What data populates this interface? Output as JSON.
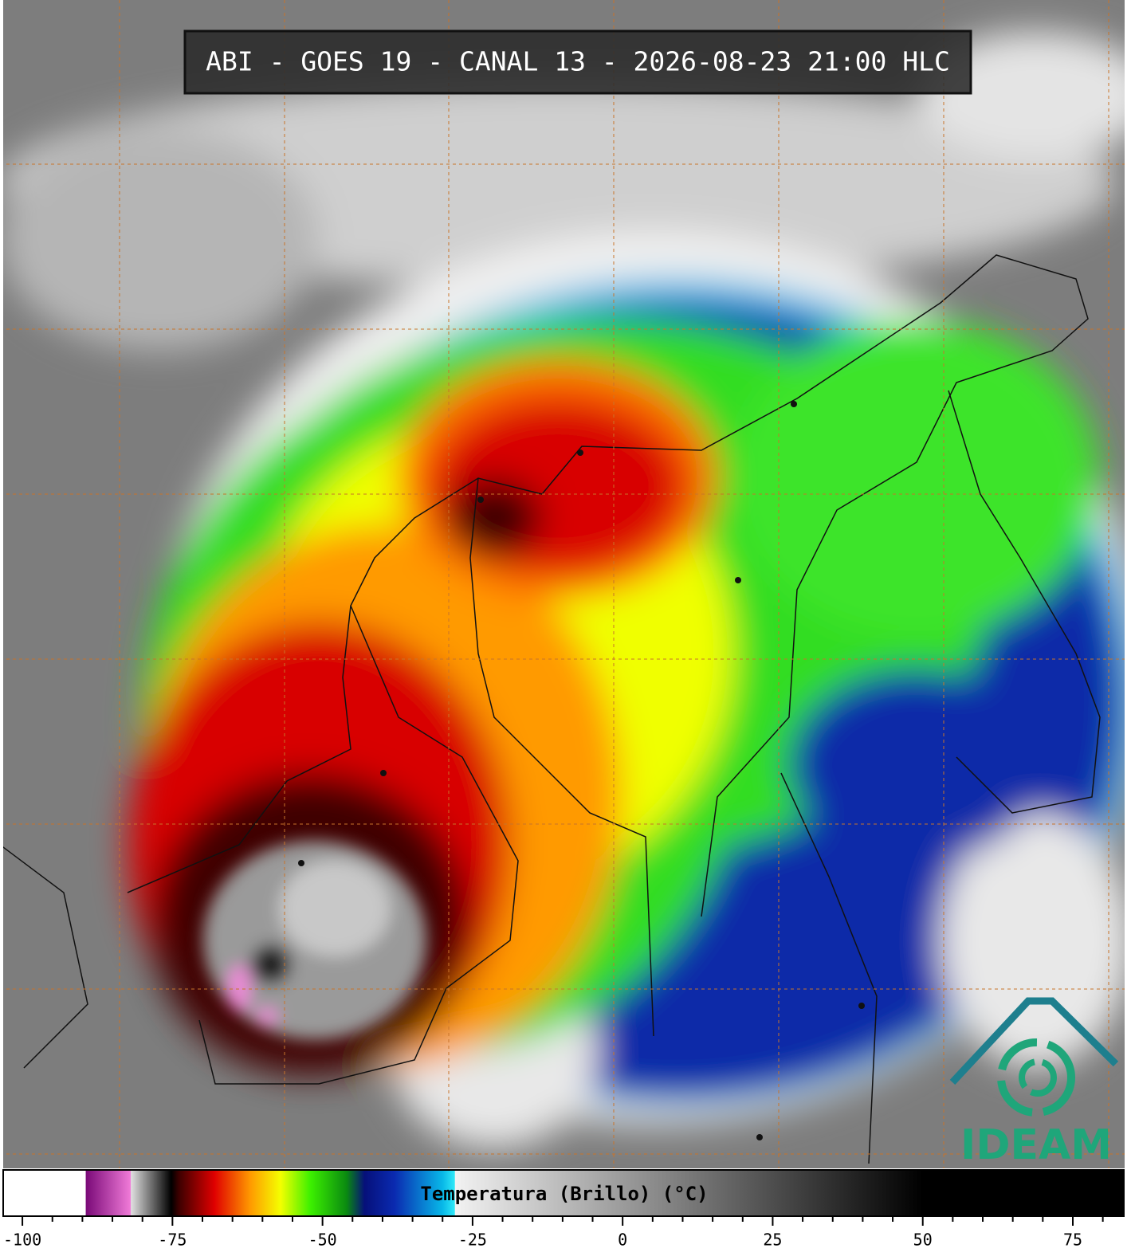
{
  "title": "ABI - GOES 19 - CANAL 13 - 2026-08-23 21:00 HLC",
  "logo": "IDEAM",
  "colorbar": {
    "label": "Temperatura (Brillo) (°C)",
    "xlim": [
      -103.2,
      83.5
    ],
    "xticks": [
      -100,
      -75,
      -50,
      -25,
      0,
      25,
      50,
      75
    ],
    "minor_tick_step": 5,
    "stops": [
      {
        "value": -103.2,
        "color": "#ffffff"
      },
      {
        "value": -89.5,
        "color": "#ffffff"
      },
      {
        "value": -89.4,
        "color": "#7a0a78"
      },
      {
        "value": -82,
        "color": "#f07ad8"
      },
      {
        "value": -81.9,
        "color": "#e0e0e0"
      },
      {
        "value": -75.2,
        "color": "#000000"
      },
      {
        "value": -74,
        "color": "#3a0000"
      },
      {
        "value": -68,
        "color": "#e00000"
      },
      {
        "value": -62,
        "color": "#ff9a00"
      },
      {
        "value": -57,
        "color": "#f4ff00"
      },
      {
        "value": -52,
        "color": "#3cf000"
      },
      {
        "value": -46,
        "color": "#0a8a10"
      },
      {
        "value": -43,
        "color": "#06107a"
      },
      {
        "value": -38,
        "color": "#0a2ab0"
      },
      {
        "value": -30,
        "color": "#08b8e8"
      },
      {
        "value": -28,
        "color": "#30e8f8"
      },
      {
        "value": -27.9,
        "color": "#f2f2f2"
      },
      {
        "value": 50,
        "color": "#000000"
      },
      {
        "value": 83.5,
        "color": "#000000"
      }
    ]
  }
}
